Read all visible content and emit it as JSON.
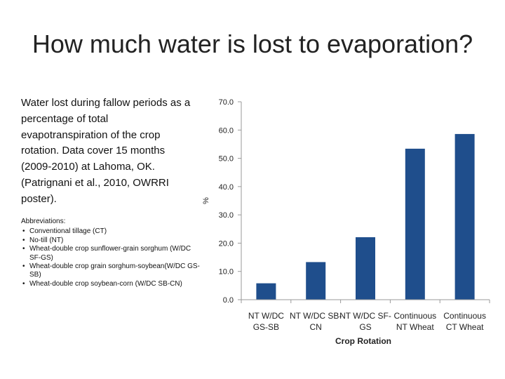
{
  "slide": {
    "title": "How much water is lost to evaporation?",
    "description": "Water lost during fallow periods as a percentage of total evapotranspiration of the crop rotation.  Data cover 15 months (2009-2010) at Lahoma, OK. (Patrignani et al., 2010, OWRRI poster).",
    "abbreviations_heading": "Abbreviations:",
    "abbreviations": [
      "Conventional tillage (CT)",
      "No-till (NT)",
      "Wheat-double crop sunflower-grain sorghum (W/DC SF-GS)",
      "Wheat-double crop grain sorghum-soybean(W/DC GS-SB)",
      "Wheat-double crop soybean-corn (W/DC SB-CN)"
    ]
  },
  "chart_data": {
    "type": "bar",
    "categories": [
      [
        "NT W/DC",
        "GS-SB"
      ],
      [
        "NT W/DC SB-",
        "CN"
      ],
      [
        "NT W/DC SF-",
        "GS"
      ],
      [
        "Continuous",
        "NT Wheat"
      ],
      [
        "Continuous",
        "CT Wheat"
      ]
    ],
    "values": [
      5.8,
      13.3,
      22.1,
      53.4,
      58.6
    ],
    "xlabel": "Crop Rotation",
    "ylabel": "%",
    "ylim": [
      0,
      70
    ],
    "yticks": [
      "0.0",
      "10.0",
      "20.0",
      "30.0",
      "40.0",
      "50.0",
      "60.0",
      "70.0"
    ],
    "bar_color": "#1F4E8C",
    "grid": false
  }
}
